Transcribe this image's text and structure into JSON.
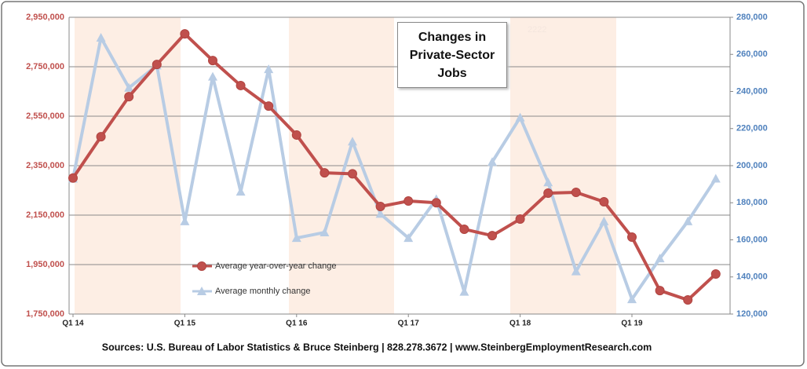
{
  "chart_data": {
    "type": "line",
    "title": "Changes in Private-Sector Jobs",
    "annotation": "2222",
    "source": "Sources: U.S. Bureau of Labor Statistics & Bruce Steinberg | 828.278.3672 | www.SteinbergEmploymentResearch.com",
    "categories": [
      "Q1 14",
      null,
      null,
      null,
      "Q1 15",
      null,
      null,
      null,
      "Q1 16",
      null,
      null,
      null,
      "Q1 17",
      null,
      null,
      null,
      "Q1 18",
      null,
      null,
      null,
      "Q1 19",
      null,
      null,
      null
    ],
    "series": [
      {
        "name": "Average year-over-year change",
        "color": "#c0504d",
        "marker": "circle",
        "axis": "y",
        "values": [
          2300000,
          2467000,
          2629000,
          2759000,
          2883000,
          2775000,
          2674000,
          2591000,
          2474000,
          2321000,
          2317000,
          2185000,
          2207000,
          2200000,
          2093000,
          2067000,
          2134000,
          2239000,
          2242000,
          2204000,
          2061000,
          1845000,
          1807000,
          1912000
        ]
      },
      {
        "name": "Average monthly change",
        "color": "#b8cce4",
        "marker": "triangle",
        "axis": "y2",
        "values": [
          193000,
          269000,
          242000,
          254000,
          170000,
          248000,
          186000,
          252000,
          161000,
          164000,
          213000,
          174000,
          161000,
          182000,
          132000,
          202000,
          226000,
          191000,
          143000,
          170000,
          128000,
          150000,
          170000,
          193000
        ]
      }
    ],
    "ylim": [
      1750000,
      2950000
    ],
    "yticks": [
      {
        "value": 1750000,
        "label": "1,750,000"
      },
      {
        "value": 1950000,
        "label": "1,950,000"
      },
      {
        "value": 2150000,
        "label": "2,150,000"
      },
      {
        "value": 2350000,
        "label": "2,350,000"
      },
      {
        "value": 2550000,
        "label": "2,550,000"
      },
      {
        "value": 2750000,
        "label": "2,750,000"
      },
      {
        "value": 2950000,
        "label": "2,950,000"
      }
    ],
    "y2lim": [
      120000,
      280000
    ],
    "y2ticks": [
      {
        "value": 120000,
        "label": "120,000"
      },
      {
        "value": 140000,
        "label": "140,000"
      },
      {
        "value": 160000,
        "label": "160,000"
      },
      {
        "value": 180000,
        "label": "180,000"
      },
      {
        "value": 200000,
        "label": "200,000"
      },
      {
        "value": 220000,
        "label": "220,000"
      },
      {
        "value": 240000,
        "label": "240,000"
      },
      {
        "value": 260000,
        "label": "260,000"
      },
      {
        "value": 280000,
        "label": "280,000"
      }
    ],
    "yaxis_color": "#c0504d",
    "y2axis_color": "#4f81bd",
    "grid": true,
    "legend": "lower left"
  }
}
